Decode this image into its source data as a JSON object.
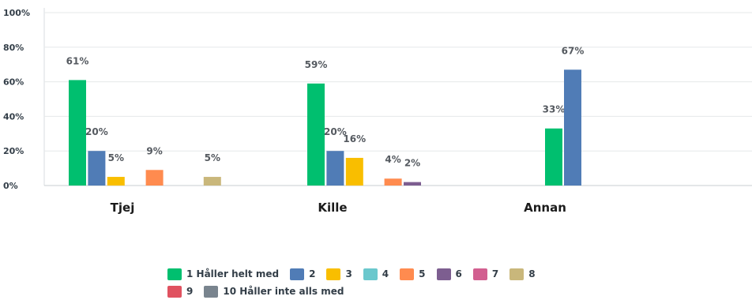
{
  "chart_data": {
    "type": "bar",
    "categories": [
      "Tjej",
      "Kille",
      "Annan"
    ],
    "ylim": [
      0,
      100
    ],
    "yticks": [
      "0%",
      "20%",
      "40%",
      "60%",
      "80%",
      "100%"
    ],
    "grid": true,
    "legend_position": "bottom",
    "series": [
      {
        "name": "1 Håller helt med",
        "color": "#00bf6f",
        "values": [
          61,
          59,
          33
        ],
        "labels": [
          "61%",
          "59%",
          "33%"
        ]
      },
      {
        "name": "2",
        "color": "#507cb6",
        "values": [
          20,
          20,
          67
        ],
        "labels": [
          "20%",
          "20%",
          "67%"
        ]
      },
      {
        "name": "3",
        "color": "#f9be00",
        "values": [
          5,
          16,
          null
        ],
        "labels": [
          "5%",
          "16%",
          null
        ]
      },
      {
        "name": "4",
        "color": "#6bc8cd",
        "values": [
          null,
          null,
          null
        ],
        "labels": [
          null,
          null,
          null
        ]
      },
      {
        "name": "5",
        "color": "#ff8b4f",
        "values": [
          9,
          4,
          null
        ],
        "labels": [
          "9%",
          "4%",
          null
        ]
      },
      {
        "name": "6",
        "color": "#7d5e90",
        "values": [
          null,
          2,
          null
        ],
        "labels": [
          null,
          "2%",
          null
        ]
      },
      {
        "name": "7",
        "color": "#d25f90",
        "values": [
          null,
          null,
          null
        ],
        "labels": [
          null,
          null,
          null
        ]
      },
      {
        "name": "8",
        "color": "#c9b77b",
        "values": [
          5,
          null,
          null
        ],
        "labels": [
          "5%",
          null,
          null
        ]
      },
      {
        "name": "9",
        "color": "#e05260",
        "values": [
          null,
          null,
          null
        ],
        "labels": [
          null,
          null,
          null
        ]
      },
      {
        "name": "10 Håller inte alls med",
        "color": "#79848e",
        "values": [
          null,
          null,
          null
        ],
        "labels": [
          null,
          null,
          null
        ]
      }
    ]
  },
  "legend_rows": [
    [
      0,
      1,
      2,
      3,
      4,
      5,
      6,
      7
    ],
    [
      8,
      9
    ]
  ]
}
